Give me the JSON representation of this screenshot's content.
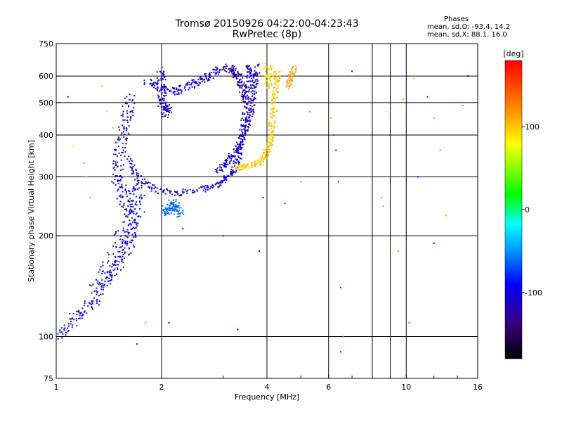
{
  "header": {
    "title_line1": "Tromsø 20150926 04:22:00-04:23:43",
    "title_line2": "RwPretec (8p)"
  },
  "phases_box": {
    "heading": "Phases",
    "line_o": "mean, sd,O: -93.4, 14.2",
    "line_x": "mean, sd,X:  88.1, 16.0"
  },
  "colorbar": {
    "label": "[deg]",
    "range": [
      -180,
      180
    ],
    "ticks": [
      {
        "value": 100,
        "label": "100"
      },
      {
        "value": 0,
        "label": "0"
      },
      {
        "value": -100,
        "label": "-100"
      }
    ]
  },
  "chart_data": {
    "type": "scatter",
    "xlabel": "Frequency [MHz]",
    "ylabel": "Stationary phase Virtual Height [km]",
    "xscale": "log",
    "yscale": "log",
    "xlim": [
      1,
      16
    ],
    "ylim": [
      75,
      750
    ],
    "x_ticks": [
      {
        "value": 1,
        "label": "1"
      },
      {
        "value": 2,
        "label": "2"
      },
      {
        "value": 4,
        "label": "4"
      },
      {
        "value": 6,
        "label": "6"
      },
      {
        "value": 10,
        "label": "10"
      },
      {
        "value": 16,
        "label": "16"
      }
    ],
    "x_gridlines": [
      2,
      4,
      6,
      8,
      9,
      10
    ],
    "y_ticks": [
      {
        "value": 75,
        "label": "75"
      },
      {
        "value": 100,
        "label": "100"
      },
      {
        "value": 200,
        "label": "200"
      },
      {
        "value": 300,
        "label": "300"
      },
      {
        "value": 400,
        "label": "400"
      },
      {
        "value": 500,
        "label": "500"
      },
      {
        "value": 600,
        "label": "600"
      },
      {
        "value": 750,
        "label": "750"
      }
    ],
    "y_gridlines": [
      100,
      200,
      300,
      400,
      500,
      600
    ],
    "traces": [
      {
        "group": "O-mode lower",
        "phase_deg": -100,
        "spread": 0.04,
        "points": [
          [
            1.0,
            100
          ],
          [
            1.1,
            110
          ],
          [
            1.2,
            120
          ],
          [
            1.3,
            132
          ],
          [
            1.4,
            148
          ],
          [
            1.5,
            165
          ],
          [
            1.6,
            185
          ],
          [
            1.65,
            210
          ],
          [
            1.6,
            240
          ],
          [
            1.55,
            270
          ],
          [
            1.5,
            300
          ],
          [
            1.52,
            350
          ],
          [
            1.55,
            400
          ],
          [
            1.6,
            460
          ],
          [
            1.62,
            520
          ]
        ]
      },
      {
        "group": "O-mode lower",
        "phase_deg": -95,
        "spread": 0.05,
        "points": [
          [
            1.3,
            140
          ],
          [
            1.45,
            170
          ],
          [
            1.55,
            200
          ],
          [
            1.7,
            230
          ],
          [
            1.7,
            260
          ],
          [
            1.7,
            290
          ]
        ]
      },
      {
        "group": "O-mode lower",
        "phase_deg": -100,
        "spread": 0.02,
        "points": [
          [
            1.62,
            340
          ],
          [
            1.7,
            300
          ],
          [
            1.9,
            275
          ],
          [
            2.2,
            268
          ],
          [
            2.6,
            275
          ],
          [
            2.9,
            285
          ],
          [
            3.1,
            300
          ],
          [
            3.25,
            320
          ],
          [
            3.35,
            350
          ],
          [
            3.4,
            400
          ],
          [
            3.45,
            450
          ],
          [
            3.5,
            520
          ],
          [
            3.55,
            600
          ],
          [
            3.55,
            640
          ]
        ]
      },
      {
        "group": "O-mode upper",
        "phase_deg": -100,
        "spread": 0.025,
        "points": [
          [
            1.8,
            580
          ],
          [
            2.0,
            545
          ],
          [
            2.2,
            540
          ],
          [
            2.4,
            560
          ],
          [
            2.6,
            585
          ],
          [
            2.8,
            610
          ],
          [
            3.0,
            640
          ]
        ]
      },
      {
        "group": "O-mode high",
        "phase_deg": -105,
        "spread": 0.03,
        "points": [
          [
            2.0,
            620
          ],
          [
            2.0,
            560
          ],
          [
            2.0,
            500
          ],
          [
            2.1,
            480
          ],
          [
            2.05,
            460
          ]
        ]
      },
      {
        "group": "O-mode branch",
        "phase_deg": -110,
        "spread": 0.02,
        "points": [
          [
            2.9,
            310
          ],
          [
            3.05,
            330
          ],
          [
            3.2,
            350
          ],
          [
            3.35,
            380
          ],
          [
            3.5,
            420
          ],
          [
            3.6,
            470
          ],
          [
            3.65,
            520
          ],
          [
            3.7,
            580
          ],
          [
            3.75,
            640
          ]
        ]
      },
      {
        "group": "O-mode 2",
        "phase_deg": -120,
        "spread": 0.025,
        "points": [
          [
            3.1,
            640
          ],
          [
            3.2,
            620
          ],
          [
            3.3,
            600
          ],
          [
            3.4,
            560
          ],
          [
            3.5,
            500
          ]
        ]
      },
      {
        "group": "X-mode",
        "phase_deg": 100,
        "spread": 0.02,
        "points": [
          [
            3.25,
            320
          ],
          [
            3.5,
            322
          ],
          [
            3.8,
            330
          ],
          [
            3.95,
            345
          ],
          [
            4.05,
            370
          ],
          [
            4.1,
            400
          ],
          [
            4.15,
            440
          ],
          [
            4.2,
            500
          ],
          [
            4.25,
            560
          ],
          [
            4.3,
            620
          ]
        ]
      },
      {
        "group": "X-mode",
        "phase_deg": 110,
        "spread": 0.02,
        "points": [
          [
            4.6,
            560
          ],
          [
            4.7,
            600
          ],
          [
            4.8,
            640
          ]
        ]
      },
      {
        "group": "X-mode",
        "phase_deg": 95,
        "spread": 0.03,
        "points": [
          [
            4.0,
            650
          ],
          [
            4.1,
            600
          ],
          [
            4.0,
            560
          ]
        ]
      },
      {
        "group": "Sporadic",
        "phase_deg": -60,
        "spread": 0.03,
        "points": [
          [
            2.05,
            240
          ],
          [
            2.1,
            235
          ],
          [
            2.15,
            250
          ],
          [
            2.2,
            245
          ],
          [
            2.3,
            230
          ]
        ]
      }
    ],
    "scattered_points": [
      [
        1.08,
        520,
        -90
      ],
      [
        1.12,
        370,
        80
      ],
      [
        1.2,
        330,
        130
      ],
      [
        1.22,
        300,
        40
      ],
      [
        1.25,
        260,
        120
      ],
      [
        1.35,
        560,
        110
      ],
      [
        1.4,
        470,
        95
      ],
      [
        1.45,
        420,
        110
      ],
      [
        1.5,
        380,
        -20
      ],
      [
        1.7,
        95,
        -80
      ],
      [
        1.8,
        110,
        -30
      ],
      [
        2.1,
        110,
        -95
      ],
      [
        2.3,
        210,
        -90
      ],
      [
        3.0,
        200,
        -90
      ],
      [
        3.3,
        105,
        -100
      ],
      [
        3.8,
        180,
        -95
      ],
      [
        3.9,
        260,
        -95
      ],
      [
        4.5,
        250,
        -80
      ],
      [
        5.0,
        290,
        130
      ],
      [
        5.3,
        470,
        30
      ],
      [
        6.1,
        450,
        120
      ],
      [
        6.2,
        400,
        -80
      ],
      [
        6.3,
        360,
        -90
      ],
      [
        6.4,
        290,
        -80
      ],
      [
        6.5,
        140,
        -70
      ],
      [
        6.6,
        100,
        150
      ],
      [
        6.5,
        90,
        -80
      ],
      [
        7.0,
        620,
        -90
      ],
      [
        7.5,
        200,
        130
      ],
      [
        8.5,
        260,
        20
      ],
      [
        8.6,
        245,
        120
      ],
      [
        8.8,
        470,
        90
      ],
      [
        9.0,
        400,
        -100
      ],
      [
        9.8,
        510,
        120
      ],
      [
        10.2,
        110,
        -50
      ],
      [
        10.5,
        590,
        100
      ],
      [
        10.8,
        300,
        -95
      ],
      [
        11.5,
        520,
        -80
      ],
      [
        12.0,
        450,
        120
      ],
      [
        12.5,
        360,
        130
      ],
      [
        13.0,
        230,
        110
      ],
      [
        14.5,
        490,
        -40
      ],
      [
        15.0,
        600,
        -90
      ],
      [
        9.5,
        180,
        120
      ],
      [
        12.0,
        190,
        -100
      ]
    ]
  }
}
